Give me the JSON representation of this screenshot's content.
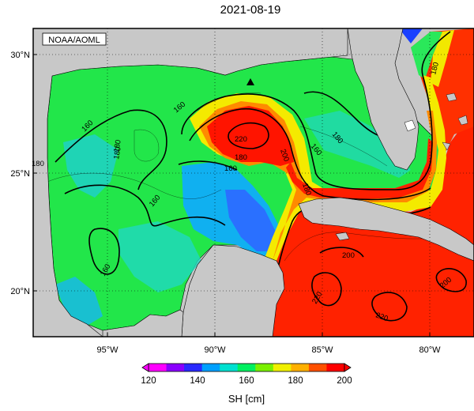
{
  "title": "2021-08-19",
  "source_label": "NOAA/AOML",
  "lat_labels": [
    "30°N",
    "25°N",
    "20°N"
  ],
  "lon_labels": [
    "95°W",
    "90°W",
    "85°W",
    "80°W"
  ],
  "contour_labels": [
    "160",
    "160",
    "180",
    "180",
    "160",
    "180",
    "160",
    "180",
    "160",
    "220",
    "200",
    "180",
    "160",
    "180",
    "200",
    "220",
    "200",
    "220",
    "180"
  ],
  "colorbar": {
    "ticks": [
      "120",
      "140",
      "160",
      "180",
      "200"
    ],
    "label": "SH [cm]",
    "min": 120,
    "max": 200,
    "colors": [
      "#ff00ff",
      "#8a00ff",
      "#2a2aff",
      "#00a0ff",
      "#00e0d0",
      "#00f060",
      "#7af000",
      "#f0f000",
      "#ffb000",
      "#ff5000",
      "#ff0000"
    ]
  },
  "marker": "triangle-marker",
  "colors": {
    "land": "#c8c8c8",
    "ocean_edge": "#d0d0d0",
    "frame": "#000000"
  }
}
